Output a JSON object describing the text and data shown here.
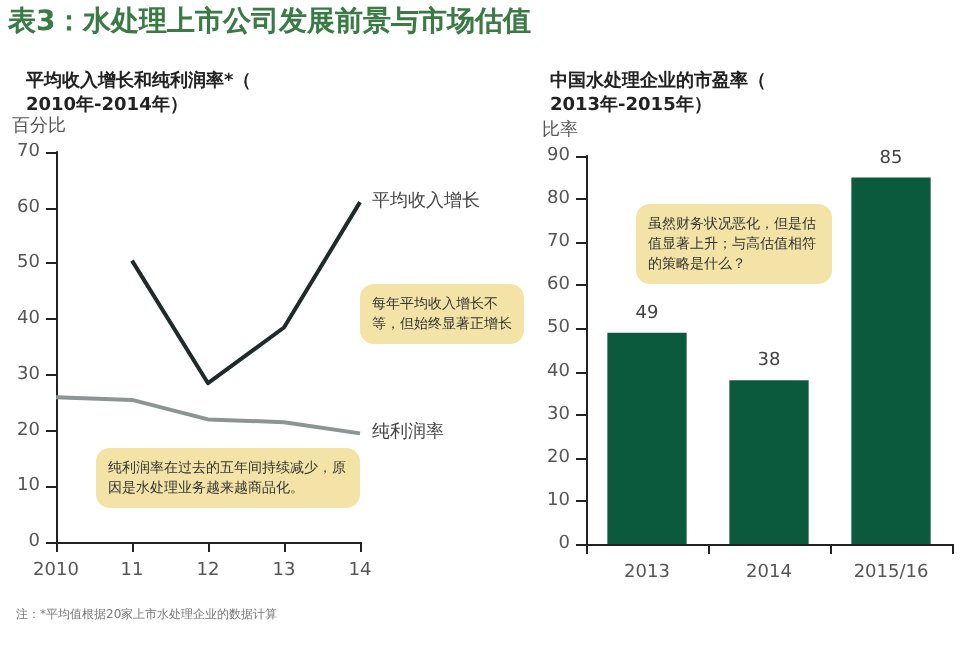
{
  "chart_data": [
    {
      "type": "line",
      "title": "表3：水处理上市公司发展前景与市场估值",
      "subtitle": "平均收入增长和纯利润率*（2010年-2014年）",
      "ylabel": "百分比",
      "categories": [
        "2010",
        "11",
        "12",
        "13",
        "14"
      ],
      "series": [
        {
          "name": "平均收入增长",
          "color": "#1f2a2a",
          "values": [
            null,
            50.5,
            28.5,
            38.5,
            61
          ]
        },
        {
          "name": "纯利润率",
          "color": "#8c9494",
          "values": [
            26,
            25.5,
            22,
            21.5,
            19.5
          ]
        }
      ],
      "ylim": [
        0,
        70
      ],
      "yticks": [
        0,
        10,
        20,
        30,
        40,
        50,
        60,
        70
      ],
      "grid": false,
      "legend": false,
      "marker": "none",
      "annotations": [
        "每年平均收入增长不等，但始终显著正增长",
        "纯利润率在过去的五年间持续减少，原因是水处理业务越来越商品化。",
        "注：*平均值根据20家上市水处理企业的数据计算"
      ]
    },
    {
      "type": "bar",
      "title": "中国水处理企业的市盈率（2013年-2015年）",
      "ylabel": "比率",
      "categories": [
        "2013",
        "2014",
        "2015/16"
      ],
      "values": [
        49,
        38,
        85
      ],
      "color": "#0b5a3e",
      "ylim": [
        0,
        90
      ],
      "yticks": [
        0,
        10,
        20,
        30,
        40,
        50,
        60,
        70,
        80,
        90
      ],
      "grid": false,
      "data_labels": true,
      "annotations": [
        "虽然财务状况恶化，但是估值显著上升；与高估值相符的策略是什么？"
      ]
    }
  ]
}
